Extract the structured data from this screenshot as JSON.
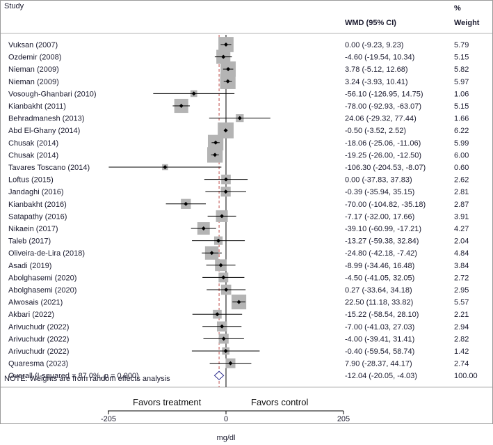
{
  "chart_data": {
    "type": "forest",
    "headers": {
      "study": "Study",
      "effect": "WMD (95% CI)",
      "weight_top": "%",
      "weight_bottom": "Weight"
    },
    "studies": [
      {
        "name": "Vuksan (2007)",
        "est": 0.0,
        "lo": -9.23,
        "hi": 9.23,
        "ci": "0.00 (-9.23, 9.23)",
        "weight": 5.79,
        "weight_label": "5.79"
      },
      {
        "name": "Ozdemir (2008)",
        "est": -4.6,
        "lo": -19.54,
        "hi": 10.34,
        "ci": "-4.60 (-19.54, 10.34)",
        "weight": 5.15,
        "weight_label": "5.15"
      },
      {
        "name": "Nieman (2009)",
        "est": 3.78,
        "lo": -5.12,
        "hi": 12.68,
        "ci": "3.78 (-5.12, 12.68)",
        "weight": 5.82,
        "weight_label": "5.82"
      },
      {
        "name": "Nieman (2009)",
        "est": 3.24,
        "lo": -3.93,
        "hi": 10.41,
        "ci": "3.24 (-3.93, 10.41)",
        "weight": 5.97,
        "weight_label": "5.97"
      },
      {
        "name": "Vosough-Ghanbari (2010)",
        "est": -56.1,
        "lo": -126.95,
        "hi": 14.75,
        "ci": "-56.10 (-126.95, 14.75)",
        "weight": 1.06,
        "weight_label": "1.06"
      },
      {
        "name": "Kianbakht (2011)",
        "est": -78.0,
        "lo": -92.93,
        "hi": -63.07,
        "ci": "-78.00 (-92.93, -63.07)",
        "weight": 5.15,
        "weight_label": "5.15"
      },
      {
        "name": "Behradmanesh (2013)",
        "est": 24.06,
        "lo": -29.32,
        "hi": 77.44,
        "ci": "24.06 (-29.32, 77.44)",
        "weight": 1.66,
        "weight_label": "1.66"
      },
      {
        "name": "Abd El-Ghany (2014)",
        "est": -0.5,
        "lo": -3.52,
        "hi": 2.52,
        "ci": "-0.50 (-3.52, 2.52)",
        "weight": 6.22,
        "weight_label": "6.22"
      },
      {
        "name": "Chusak (2014)",
        "est": -18.06,
        "lo": -25.06,
        "hi": -11.06,
        "ci": "-18.06 (-25.06, -11.06)",
        "weight": 5.99,
        "weight_label": "5.99"
      },
      {
        "name": "Chusak (2014)",
        "est": -19.25,
        "lo": -26.0,
        "hi": -12.5,
        "ci": "-19.25 (-26.00, -12.50)",
        "weight": 6.0,
        "weight_label": "6.00"
      },
      {
        "name": "Tavares Toscano (2014)",
        "est": -106.3,
        "lo": -204.53,
        "hi": -8.07,
        "ci": "-106.30 (-204.53, -8.07)",
        "weight": 0.6,
        "weight_label": "0.60"
      },
      {
        "name": "Loftus (2015)",
        "est": 0.0,
        "lo": -37.83,
        "hi": 37.83,
        "ci": "0.00 (-37.83, 37.83)",
        "weight": 2.62,
        "weight_label": "2.62"
      },
      {
        "name": "Jandaghi (2016)",
        "est": -0.39,
        "lo": -35.94,
        "hi": 35.15,
        "ci": "-0.39 (-35.94, 35.15)",
        "weight": 2.81,
        "weight_label": "2.81"
      },
      {
        "name": "Kianbakht (2016)",
        "est": -70.0,
        "lo": -104.82,
        "hi": -35.18,
        "ci": "-70.00 (-104.82, -35.18)",
        "weight": 2.87,
        "weight_label": "2.87"
      },
      {
        "name": "Satapathy (2016)",
        "est": -7.17,
        "lo": -32.0,
        "hi": 17.66,
        "ci": "-7.17 (-32.00, 17.66)",
        "weight": 3.91,
        "weight_label": "3.91"
      },
      {
        "name": "Nikaein (2017)",
        "est": -39.1,
        "lo": -60.99,
        "hi": -17.21,
        "ci": "-39.10 (-60.99, -17.21)",
        "weight": 4.27,
        "weight_label": "4.27"
      },
      {
        "name": "Taleb (2017)",
        "est": -13.27,
        "lo": -59.38,
        "hi": 32.84,
        "ci": "-13.27 (-59.38, 32.84)",
        "weight": 2.04,
        "weight_label": "2.04"
      },
      {
        "name": "Oliveira-de-Lira (2018)",
        "est": -24.8,
        "lo": -42.18,
        "hi": -7.42,
        "ci": "-24.80 (-42.18, -7.42)",
        "weight": 4.84,
        "weight_label": "4.84"
      },
      {
        "name": "Asadi (2019)",
        "est": -8.99,
        "lo": -34.46,
        "hi": 16.48,
        "ci": "-8.99 (-34.46, 16.48)",
        "weight": 3.84,
        "weight_label": "3.84"
      },
      {
        "name": "Abolghasemi (2020)",
        "est": -4.5,
        "lo": -41.05,
        "hi": 32.05,
        "ci": "-4.50 (-41.05, 32.05)",
        "weight": 2.72,
        "weight_label": "2.72"
      },
      {
        "name": "Abolghasemi (2020)",
        "est": 0.27,
        "lo": -33.64,
        "hi": 34.18,
        "ci": "0.27 (-33.64, 34.18)",
        "weight": 2.95,
        "weight_label": "2.95"
      },
      {
        "name": "Alwosais (2021)",
        "est": 22.5,
        "lo": 11.18,
        "hi": 33.82,
        "ci": "22.50 (11.18, 33.82)",
        "weight": 5.57,
        "weight_label": "5.57"
      },
      {
        "name": "Akbari (2022)",
        "est": -15.22,
        "lo": -58.54,
        "hi": 28.1,
        "ci": "-15.22 (-58.54, 28.10)",
        "weight": 2.21,
        "weight_label": "2.21"
      },
      {
        "name": "Arivuchudr (2022)",
        "est": -7.0,
        "lo": -41.03,
        "hi": 27.03,
        "ci": "-7.00 (-41.03, 27.03)",
        "weight": 2.94,
        "weight_label": "2.94"
      },
      {
        "name": "Arivuchudr (2022)",
        "est": -4.0,
        "lo": -39.41,
        "hi": 31.41,
        "ci": "-4.00 (-39.41, 31.41)",
        "weight": 2.82,
        "weight_label": "2.82"
      },
      {
        "name": "Arivuchudr (2022)",
        "est": -0.4,
        "lo": -59.54,
        "hi": 58.74,
        "ci": "-0.40 (-59.54, 58.74)",
        "weight": 1.42,
        "weight_label": "1.42"
      },
      {
        "name": "Quaresma (2023)",
        "est": 7.9,
        "lo": -28.37,
        "hi": 44.17,
        "ci": "7.90 (-28.37, 44.17)",
        "weight": 2.74,
        "weight_label": "2.74"
      }
    ],
    "overall": {
      "name": "Overall  (I-squared = 87.0%, p = 0.000)",
      "est": -12.04,
      "lo": -20.05,
      "hi": -4.03,
      "ci": "-12.04 (-20.05, -4.03)",
      "weight_label": "100.00"
    },
    "note": "NOTE: Weights are from random effects analysis",
    "x_ticks": [
      -205,
      0,
      205
    ],
    "x_tick_labels": [
      "-205",
      "0",
      "205"
    ],
    "xlim": [
      -205,
      205
    ],
    "left_label": "Favors treatment",
    "right_label": "Favors control",
    "xlabel": "mg/dl",
    "colors": {
      "text": "#1a1a2e",
      "box": "#b4b4b4",
      "line": "#000000",
      "overall_line": "#c0504d",
      "frame": "#9a9a9a"
    }
  }
}
